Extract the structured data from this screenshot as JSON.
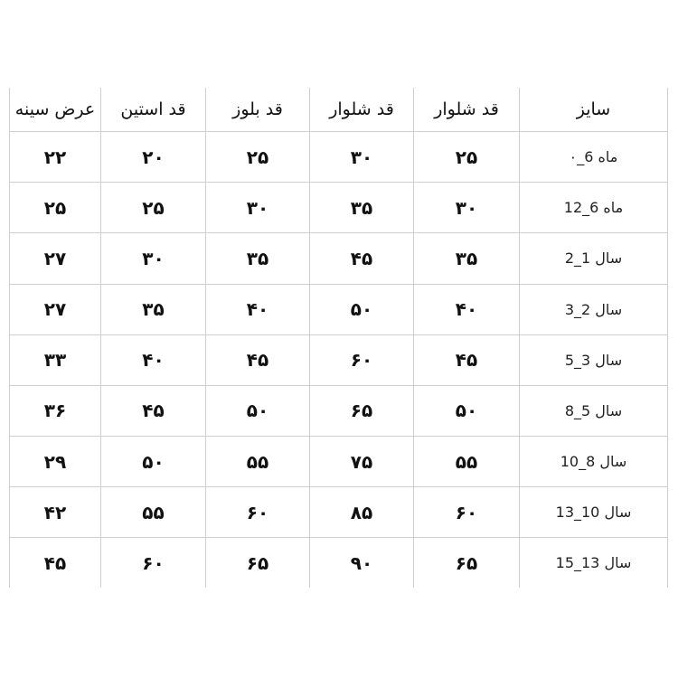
{
  "headers": [
    "سایز",
    "قد شلوار",
    "قد شلوار",
    "قد بلوز",
    "قد استین",
    "عرض سینه"
  ],
  "rows": [
    [
      "ماه 6_۰",
      "۲۵",
      "۳۰",
      "۲۵",
      "۲۰",
      "۲۲"
    ],
    [
      "ماه 6_12",
      "۳۰",
      "۳۵",
      "۳۰",
      "۲۵",
      "۲۵"
    ],
    [
      "سال 1_2",
      "۳۵",
      "۴۵",
      "۳۵",
      "۳۰",
      "۲۷"
    ],
    [
      "سال 2_3",
      "۴۰",
      "۵۰",
      "۴۰",
      "۳۵",
      "۲۷"
    ],
    [
      "سال 3_5",
      "۴۵",
      "۶۰",
      "۴۵",
      "۴۰",
      "۳۳"
    ],
    [
      "سال 5_8",
      "۵۰",
      "۶۵",
      "۵۰",
      "۴۵",
      "۳۶"
    ],
    [
      "سال 8_10",
      "۵۵",
      "۷۵",
      "۵۵",
      "۵۰",
      "۲۹"
    ],
    [
      "سال 10_13",
      "۶۰",
      "۸۵",
      "۶۰",
      "۵۵",
      "۴۲"
    ],
    [
      "سال 13_15",
      "۶۵",
      "۹۰",
      "۶۵",
      "۶۰",
      "۴۵"
    ]
  ]
}
